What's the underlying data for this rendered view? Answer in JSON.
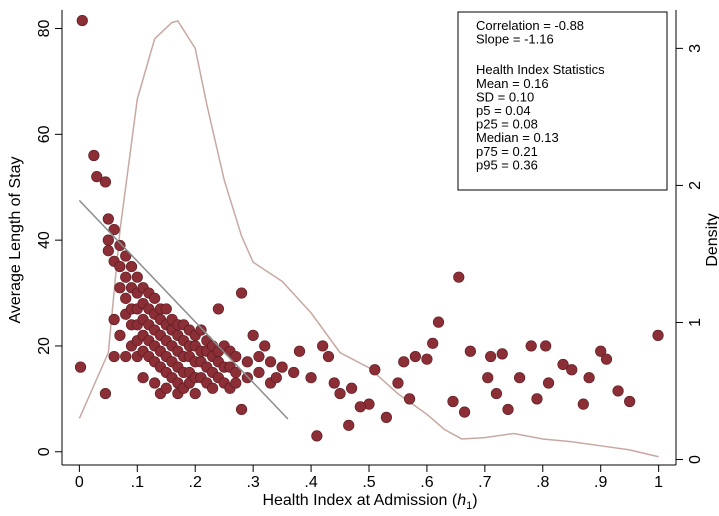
{
  "chart_data": {
    "type": "scatter",
    "x_label_parts": [
      "Health Index at Admission (",
      "h",
      "1",
      ")"
    ],
    "y_label": "Average Length of Stay",
    "y2_label": "Density",
    "xlim": [
      -0.03,
      1.03
    ],
    "ylim": [
      -2.5,
      83.5
    ],
    "y2lim": [
      -0.04,
      3.28
    ],
    "xticks": [
      {
        "value": 0,
        "label": "0"
      },
      {
        "value": 0.1,
        "label": ".1"
      },
      {
        "value": 0.2,
        "label": ".2"
      },
      {
        "value": 0.3,
        "label": ".3"
      },
      {
        "value": 0.4,
        "label": ".4"
      },
      {
        "value": 0.5,
        "label": ".5"
      },
      {
        "value": 0.6,
        "label": ".6"
      },
      {
        "value": 0.7,
        "label": ".7"
      },
      {
        "value": 0.8,
        "label": ".8"
      },
      {
        "value": 0.9,
        "label": ".9"
      },
      {
        "value": 1,
        "label": "1"
      }
    ],
    "yticks": [
      0,
      20,
      40,
      60,
      80
    ],
    "y2ticks": [
      0,
      1,
      2,
      3
    ],
    "stats_top": [
      "Correlation =  -0.88",
      "Slope =  -1.16"
    ],
    "stats_title": "Health Index Statistics",
    "stats": [
      "Mean =   0.16",
      "SD =   0.10",
      "p5 =   0.04",
      "p25 =   0.08",
      "Median =   0.13",
      "p75 =   0.21",
      "p95 =   0.36"
    ],
    "points": {
      "color": "#8b2e36",
      "x": [
        0.05,
        0.05,
        0.05,
        0.06,
        0.06,
        0.06,
        0.06,
        0.07,
        0.07,
        0.07,
        0.07,
        0.08,
        0.08,
        0.08,
        0.08,
        0.08,
        0.09,
        0.09,
        0.09,
        0.09,
        0.09,
        0.1,
        0.1,
        0.1,
        0.1,
        0.1,
        0.1,
        0.11,
        0.11,
        0.11,
        0.11,
        0.11,
        0.11,
        0.12,
        0.12,
        0.12,
        0.12,
        0.12,
        0.13,
        0.13,
        0.13,
        0.13,
        0.13,
        0.13,
        0.14,
        0.14,
        0.14,
        0.14,
        0.14,
        0.14,
        0.15,
        0.15,
        0.15,
        0.15,
        0.15,
        0.15,
        0.16,
        0.16,
        0.16,
        0.16,
        0.16,
        0.17,
        0.17,
        0.17,
        0.17,
        0.17,
        0.17,
        0.18,
        0.18,
        0.18,
        0.18,
        0.18,
        0.19,
        0.19,
        0.19,
        0.19,
        0.19,
        0.2,
        0.2,
        0.2,
        0.2,
        0.2,
        0.21,
        0.21,
        0.21,
        0.21,
        0.22,
        0.22,
        0.22,
        0.22,
        0.23,
        0.23,
        0.23,
        0.23,
        0.24,
        0.24,
        0.24,
        0.25,
        0.25,
        0.25,
        0.26,
        0.26,
        0.26,
        0.27,
        0.27,
        0.27,
        0.29,
        0.29,
        0.31,
        0.31,
        0.33,
        0.33,
        0.34,
        0.005,
        0.002,
        0.025,
        0.03,
        0.045,
        0.045,
        0.655,
        0.62,
        0.61,
        0.71,
        0.675,
        0.73,
        0.78,
        0.805,
        0.835,
        0.85,
        0.88,
        0.9,
        0.91,
        0.93,
        0.95,
        0.999,
        0.87,
        0.79,
        0.74,
        0.72,
        0.645,
        0.665,
        0.51,
        0.56,
        0.58,
        0.6,
        0.5,
        0.53,
        0.485,
        0.465,
        0.41,
        0.45,
        0.42,
        0.43,
        0.38,
        0.35,
        0.28,
        0.28,
        0.24,
        0.3,
        0.32,
        0.37,
        0.4,
        0.44,
        0.47,
        0.55,
        0.57,
        0.705,
        0.76,
        0.81
      ],
      "values": [
        44,
        40,
        38,
        42,
        36,
        25,
        18,
        39,
        35,
        31,
        22,
        37,
        33,
        29,
        26,
        18,
        35,
        31,
        27,
        24,
        20,
        33,
        30,
        27,
        24,
        21,
        18,
        31,
        28,
        25,
        22,
        19,
        14,
        30,
        27,
        24,
        21,
        18,
        29,
        26,
        23,
        20,
        17,
        13,
        27,
        25,
        22,
        19,
        16,
        11,
        27,
        24,
        21,
        18,
        15,
        12,
        25,
        23,
        20,
        17,
        14,
        24,
        22,
        19,
        16,
        13,
        11,
        24,
        21,
        18,
        15,
        12,
        23,
        20,
        18,
        15,
        13,
        22,
        20,
        17,
        14,
        11,
        23,
        19,
        17,
        14,
        21,
        19,
        16,
        13,
        20,
        18,
        15,
        12,
        19,
        17,
        14,
        20,
        16,
        13,
        19,
        16,
        12,
        18,
        15,
        13,
        17,
        14,
        18,
        15,
        17,
        13,
        14,
        81.5,
        16,
        56,
        52,
        51,
        11,
        33,
        24.5,
        20.5,
        18,
        19,
        18.5,
        20,
        20,
        16.5,
        15.5,
        14,
        19,
        17.5,
        11.5,
        9.5,
        22,
        9,
        10,
        8,
        11,
        9.5,
        7.5,
        15.5,
        17,
        18,
        17.5,
        9,
        6.5,
        8.5,
        5,
        3,
        11,
        20,
        18,
        19,
        16,
        30,
        8,
        27,
        22,
        20,
        15,
        14,
        13,
        12,
        13,
        10,
        14,
        14,
        13
      ]
    },
    "fit_line": {
      "color": "#8c8c8c",
      "x": [
        0,
        0.36
      ],
      "values": [
        47.5,
        6.2
      ]
    },
    "density": {
      "color": "#c8a8a2",
      "axis": "y2",
      "x": [
        0,
        0.05,
        0.07,
        0.1,
        0.13,
        0.16,
        0.17,
        0.2,
        0.22,
        0.25,
        0.28,
        0.3,
        0.35,
        0.4,
        0.45,
        0.5,
        0.55,
        0.6,
        0.63,
        0.66,
        0.7,
        0.75,
        0.8,
        0.85,
        0.9,
        0.95,
        1
      ],
      "values": [
        0.3,
        0.78,
        1.67,
        2.63,
        3.07,
        3.19,
        3.2,
        3.0,
        2.59,
        2.04,
        1.63,
        1.44,
        1.3,
        1.07,
        0.78,
        0.67,
        0.48,
        0.33,
        0.22,
        0.15,
        0.16,
        0.19,
        0.15,
        0.13,
        0.1,
        0.07,
        0.02
      ]
    }
  }
}
